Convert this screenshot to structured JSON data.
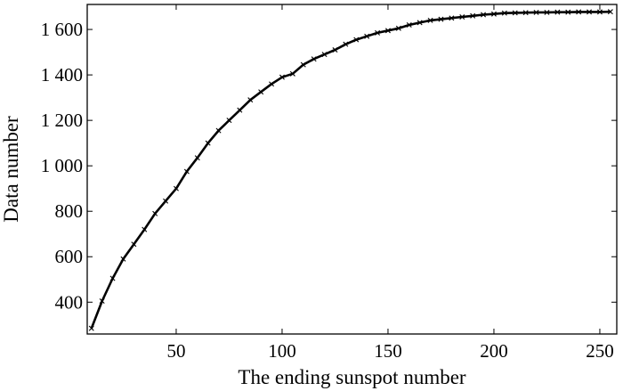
{
  "chart_data": {
    "type": "line",
    "xlabel": "The ending sunspot number",
    "ylabel": "Data number",
    "xlim": [
      8,
      258
    ],
    "ylim": [
      260,
      1710
    ],
    "xticks": [
      50,
      100,
      150,
      200,
      250
    ],
    "yticks": [
      400,
      600,
      800,
      1000,
      1200,
      1400,
      1600
    ],
    "xtick_labels": [
      "50",
      "100",
      "150",
      "200",
      "250"
    ],
    "ytick_labels": [
      "400",
      "600",
      "800",
      "1 000",
      "1 200",
      "1 400",
      "1 600"
    ],
    "grid": false,
    "line_color": "#000000",
    "marker": "x",
    "series": [
      {
        "x": [
          10,
          15,
          20,
          25,
          30,
          35,
          40,
          45,
          50,
          55,
          60,
          65,
          70,
          75,
          80,
          85,
          90,
          95,
          100,
          105,
          110,
          115,
          120,
          125,
          130,
          135,
          140,
          145,
          150,
          155,
          160,
          165,
          170,
          175,
          180,
          185,
          190,
          195,
          200,
          205,
          210,
          215,
          220,
          225,
          230,
          235,
          240,
          245,
          250,
          255
        ],
        "y": [
          285,
          405,
          505,
          590,
          655,
          720,
          790,
          845,
          900,
          975,
          1035,
          1100,
          1155,
          1200,
          1245,
          1290,
          1325,
          1360,
          1390,
          1405,
          1445,
          1470,
          1490,
          1510,
          1535,
          1555,
          1570,
          1585,
          1595,
          1605,
          1620,
          1630,
          1640,
          1645,
          1650,
          1655,
          1660,
          1665,
          1668,
          1672,
          1673,
          1674,
          1675,
          1675,
          1676,
          1676,
          1677,
          1677,
          1677,
          1678
        ]
      }
    ]
  }
}
